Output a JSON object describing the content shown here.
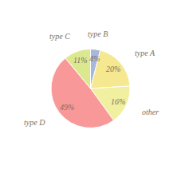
{
  "chart_data": {
    "type": "pie",
    "categories": [
      "type B",
      "type A",
      "other",
      "type D",
      "type C"
    ],
    "values": [
      4,
      20,
      16,
      49,
      11
    ],
    "value_labels": [
      "4%",
      "20%",
      "16%",
      "49%",
      "11%"
    ],
    "colors": [
      "#a8b8d8",
      "#f5e890",
      "#f0f0a0",
      "#f89898",
      "#dce890"
    ],
    "data_labels": true
  }
}
